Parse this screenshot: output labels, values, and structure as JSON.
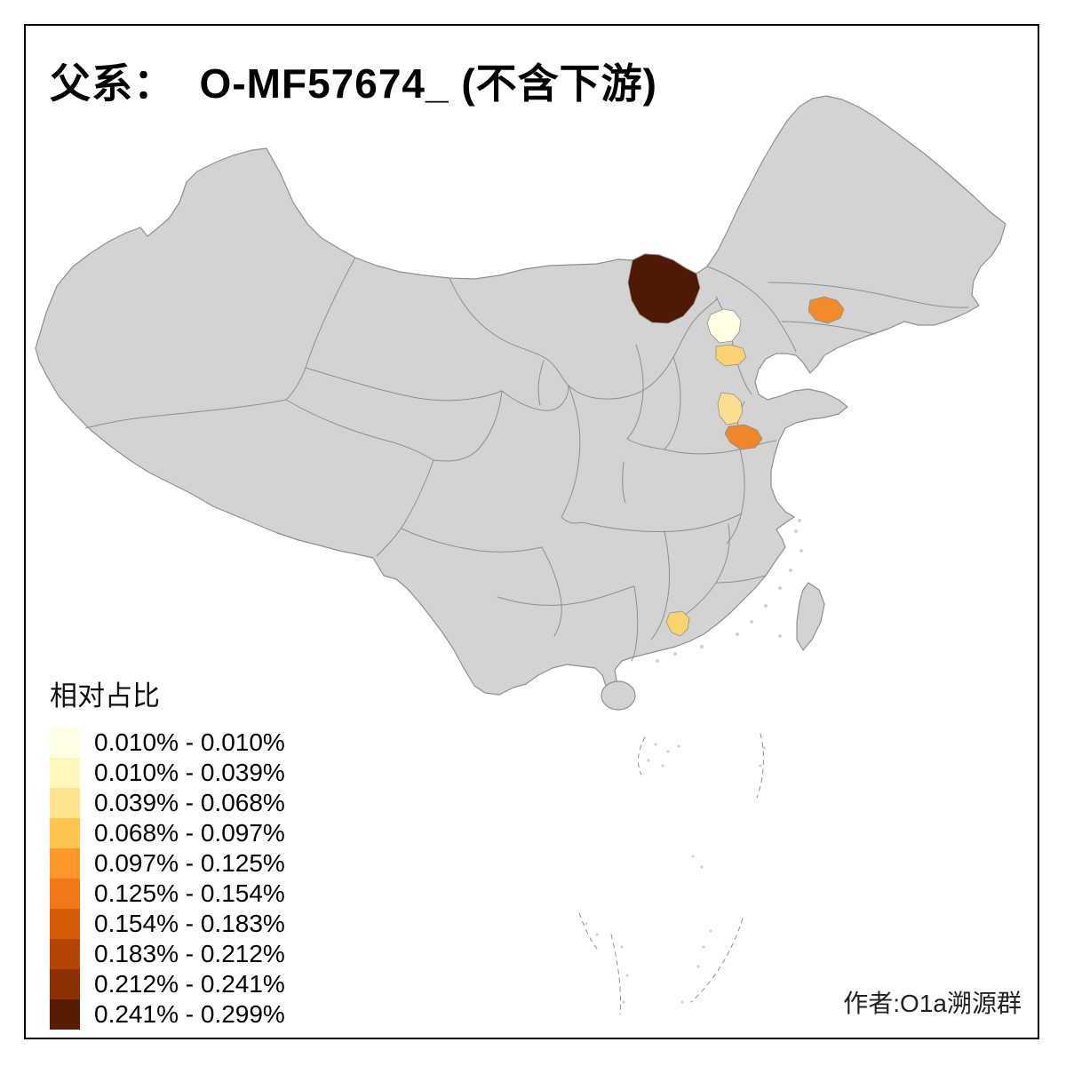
{
  "title": "父系：  O-MF57674_ (不含下游)",
  "attribution": "作者:O1a溯源群",
  "legend": {
    "title": "相对占比",
    "items": [
      {
        "label": "0.010% - 0.010%",
        "color": "#FFFFE5"
      },
      {
        "label": "0.010% - 0.039%",
        "color": "#FFF7BC"
      },
      {
        "label": "0.039% - 0.068%",
        "color": "#FEE391"
      },
      {
        "label": "0.068% - 0.097%",
        "color": "#FEC44F"
      },
      {
        "label": "0.097% - 0.125%",
        "color": "#FE9929"
      },
      {
        "label": "0.125% - 0.154%",
        "color": "#F07818"
      },
      {
        "label": "0.154% - 0.183%",
        "color": "#D85C08"
      },
      {
        "label": "0.183% - 0.212%",
        "color": "#B54504"
      },
      {
        "label": "0.212% - 0.241%",
        "color": "#8A3003"
      },
      {
        "label": "0.241% - 0.299%",
        "color": "#571C02"
      }
    ]
  },
  "map": {
    "base_fill": "#D3D3D3",
    "border_color": "#8F8F8F",
    "background": "#FFFFFF",
    "highlights": [
      {
        "id": "north-border-region",
        "color": "#4E1A03",
        "bin": "0.241% - 0.299%"
      },
      {
        "id": "beijing-region",
        "color": "#FFFDE2",
        "bin": "0.010% - 0.010%"
      },
      {
        "id": "hebei-tianjin-region",
        "color": "#FCD170",
        "bin": "0.068% - 0.097%"
      },
      {
        "id": "liaoning-region",
        "color": "#F18B2B",
        "bin": "0.097% - 0.125%"
      },
      {
        "id": "shandong-region",
        "color": "#FBDE8F",
        "bin": "0.039% - 0.068%"
      },
      {
        "id": "jiangsu-region",
        "color": "#EE862C",
        "bin": "0.125% - 0.154%"
      },
      {
        "id": "guangdong-region",
        "color": "#F8D46E",
        "bin": "0.068% - 0.097%"
      }
    ]
  }
}
